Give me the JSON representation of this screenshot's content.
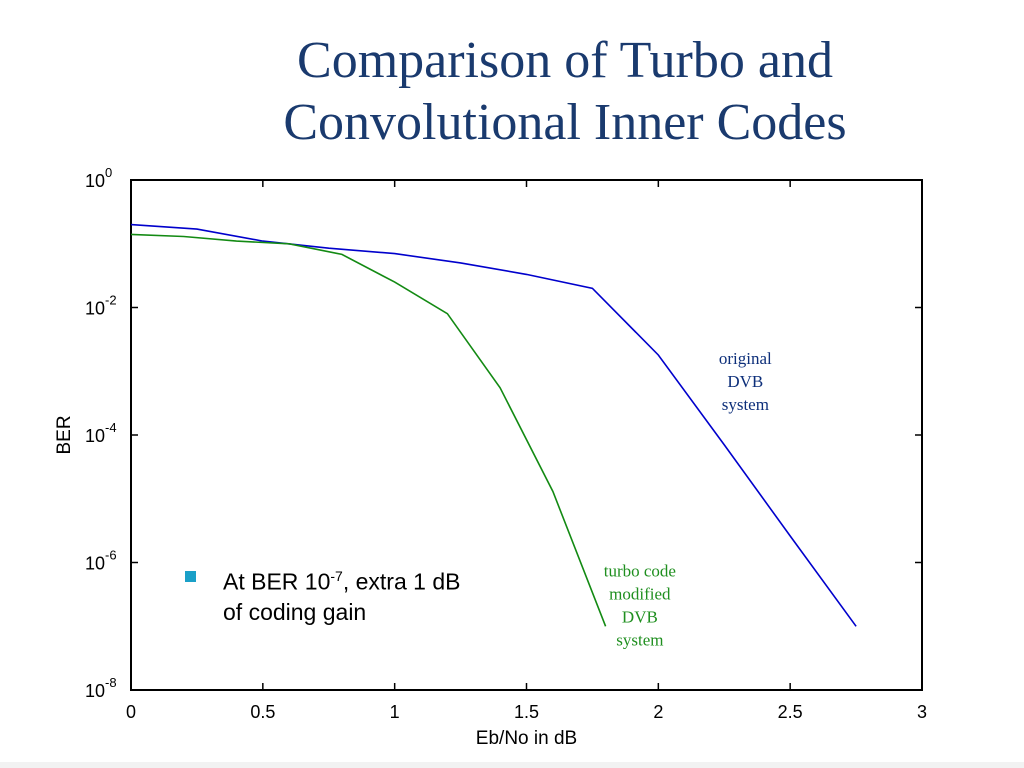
{
  "slide": {
    "title_line1": "Comparison of Turbo and",
    "title_line2": "Convolutional Inner Codes",
    "bullet": {
      "text_pre": "At BER 10",
      "sup": "-7",
      "text_post": ", extra 1 dB",
      "line2": "of coding gain"
    }
  },
  "colors": {
    "title": "#1a3a6e",
    "bullet_marker": "#1aa0c8",
    "series_blue": "#0000cc",
    "series_green": "#138a13",
    "annotation_blue": "#0d2f7a",
    "annotation_green": "#1f8f1f"
  },
  "chart_data": {
    "type": "line",
    "xlabel": "Eb/No in dB",
    "ylabel": "BER",
    "xlim": [
      0,
      3
    ],
    "ylim": [
      1e-08,
      1
    ],
    "yscale": "log",
    "grid": false,
    "x_ticks": [
      "0",
      "0.5",
      "1",
      "1.5",
      "2",
      "2.5",
      "3"
    ],
    "y_ticks": [
      {
        "base": "10",
        "exp": "0"
      },
      {
        "base": "10",
        "exp": "-2"
      },
      {
        "base": "10",
        "exp": "-4"
      },
      {
        "base": "10",
        "exp": "-6"
      },
      {
        "base": "10",
        "exp": "-8"
      }
    ],
    "series": [
      {
        "color": "#0000cc",
        "x": [
          0,
          0.25,
          0.5,
          0.75,
          1.0,
          1.25,
          1.5,
          1.75,
          2.0,
          2.25,
          2.5,
          2.75
        ],
        "y": [
          0.2,
          0.17,
          0.11,
          0.085,
          0.07,
          0.05,
          0.033,
          0.02,
          0.0018,
          7e-05,
          2.6e-06,
          1e-07
        ]
      },
      {
        "color": "#138a13",
        "x": [
          0,
          0.2,
          0.4,
          0.6,
          0.8,
          1.0,
          1.2,
          1.4,
          1.6,
          1.8
        ],
        "y": [
          0.14,
          0.13,
          0.11,
          0.1,
          0.068,
          0.025,
          0.008,
          0.00055,
          1.3e-05,
          1e-07
        ]
      }
    ],
    "annotations": [
      {
        "lines": [
          "original",
          "DVB",
          "system"
        ],
        "color": "#0d2f7a",
        "x": 2.33,
        "y": 0.0013
      },
      {
        "lines": [
          "turbo code",
          "modified",
          "DVB",
          "system"
        ],
        "color": "#1f8f1f",
        "x": 1.93,
        "y": 6e-07
      }
    ]
  }
}
